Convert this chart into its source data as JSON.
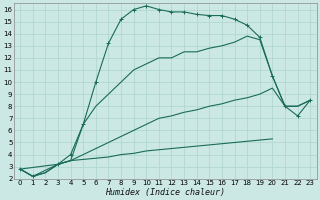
{
  "xlabel": "Humidex (Indice chaleur)",
  "bg_color": "#cce8e4",
  "line_color": "#1a6b5a",
  "grid_color": "#b0d8d0",
  "xlim": [
    -0.5,
    23.5
  ],
  "ylim": [
    2,
    16.5
  ],
  "xticks": [
    0,
    1,
    2,
    3,
    4,
    5,
    6,
    7,
    8,
    9,
    10,
    11,
    12,
    13,
    14,
    15,
    16,
    17,
    18,
    19,
    20,
    21,
    22,
    23
  ],
  "yticks": [
    2,
    3,
    4,
    5,
    6,
    7,
    8,
    9,
    10,
    11,
    12,
    13,
    14,
    15,
    16
  ],
  "series": [
    {
      "x": [
        0,
        1,
        2,
        3,
        4,
        5,
        6,
        7,
        8,
        9,
        10,
        11,
        12,
        13,
        14,
        15,
        16,
        17,
        18,
        19,
        20
      ],
      "y": [
        2.8,
        2.2,
        2.5,
        3.2,
        3.5,
        3.6,
        3.7,
        3.8,
        4.0,
        4.1,
        4.3,
        4.4,
        4.5,
        4.6,
        4.7,
        4.8,
        4.9,
        5.0,
        5.1,
        5.2,
        5.3
      ]
    },
    {
      "x": [
        0,
        1,
        2,
        3,
        4,
        5,
        6,
        7,
        8,
        9,
        10,
        11,
        12,
        13,
        14,
        15,
        16,
        17,
        18,
        19,
        20,
        21,
        22,
        23
      ],
      "y": [
        2.8,
        2.2,
        2.5,
        3.2,
        3.5,
        4.0,
        4.5,
        5.0,
        5.5,
        6.0,
        6.5,
        7.0,
        7.2,
        7.5,
        7.7,
        8.0,
        8.2,
        8.5,
        8.7,
        9.0,
        9.5,
        8.0,
        8.0,
        8.5
      ]
    },
    {
      "x": [
        0,
        3,
        4,
        5,
        6,
        7,
        8,
        9,
        10,
        11,
        12,
        13,
        14,
        15,
        16,
        17,
        18,
        19,
        20,
        21,
        22,
        23
      ],
      "y": [
        2.8,
        3.2,
        3.5,
        6.5,
        8.0,
        9.0,
        10.0,
        11.0,
        11.5,
        12.0,
        12.0,
        12.5,
        12.5,
        12.8,
        13.0,
        13.3,
        13.8,
        13.5,
        10.5,
        8.0,
        8.0,
        8.5
      ]
    },
    {
      "x": [
        0,
        1,
        3,
        4,
        5,
        6,
        7,
        8,
        9,
        10,
        11,
        12,
        13,
        14,
        15,
        16,
        17,
        18,
        19,
        20,
        21,
        22,
        23
      ],
      "y": [
        2.8,
        2.2,
        3.2,
        4.0,
        6.5,
        10.0,
        13.2,
        15.2,
        16.0,
        16.3,
        16.0,
        15.8,
        15.8,
        15.6,
        15.5,
        15.5,
        15.2,
        14.7,
        13.7,
        10.5,
        8.0,
        7.2,
        8.5
      ]
    }
  ]
}
